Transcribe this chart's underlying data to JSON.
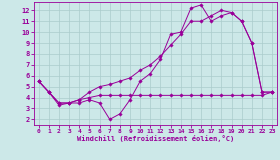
{
  "xlabel": "Windchill (Refroidissement éolien,°C)",
  "background_color": "#cce8e8",
  "grid_color": "#aacccc",
  "line_color": "#990099",
  "xlim": [
    -0.5,
    23.5
  ],
  "ylim": [
    1.5,
    12.8
  ],
  "xticks": [
    0,
    1,
    2,
    3,
    4,
    5,
    6,
    7,
    8,
    9,
    10,
    11,
    12,
    13,
    14,
    15,
    16,
    17,
    18,
    19,
    20,
    21,
    22,
    23
  ],
  "yticks": [
    2,
    3,
    4,
    5,
    6,
    7,
    8,
    9,
    10,
    11,
    12
  ],
  "line1_x": [
    0,
    1,
    2,
    3,
    4,
    5,
    6,
    7,
    8,
    9,
    10,
    11,
    12,
    13,
    14,
    15,
    16,
    17,
    18,
    19,
    20,
    21,
    22,
    23
  ],
  "line1_y": [
    5.5,
    4.5,
    3.3,
    3.5,
    3.5,
    3.8,
    3.5,
    2.0,
    2.5,
    3.8,
    5.5,
    6.2,
    7.5,
    9.8,
    10.0,
    12.2,
    12.5,
    11.0,
    11.5,
    11.8,
    11.0,
    9.0,
    4.5,
    4.5
  ],
  "line2_x": [
    0,
    1,
    2,
    3,
    4,
    5,
    6,
    7,
    8,
    9,
    10,
    11,
    12,
    13,
    14,
    15,
    16,
    17,
    18,
    19,
    20,
    21,
    22,
    23
  ],
  "line2_y": [
    5.5,
    4.5,
    3.5,
    3.5,
    3.8,
    4.0,
    4.2,
    4.2,
    4.2,
    4.2,
    4.2,
    4.2,
    4.2,
    4.2,
    4.2,
    4.2,
    4.2,
    4.2,
    4.2,
    4.2,
    4.2,
    4.2,
    4.2,
    4.5
  ],
  "line3_x": [
    0,
    1,
    2,
    3,
    4,
    5,
    6,
    7,
    8,
    9,
    10,
    11,
    12,
    13,
    14,
    15,
    16,
    17,
    18,
    19,
    20,
    21,
    22,
    23
  ],
  "line3_y": [
    5.5,
    4.5,
    3.5,
    3.5,
    3.8,
    4.5,
    5.0,
    5.2,
    5.5,
    5.8,
    6.5,
    7.0,
    7.8,
    8.8,
    9.8,
    11.0,
    11.0,
    11.5,
    12.0,
    11.8,
    11.0,
    9.0,
    4.5,
    4.5
  ]
}
